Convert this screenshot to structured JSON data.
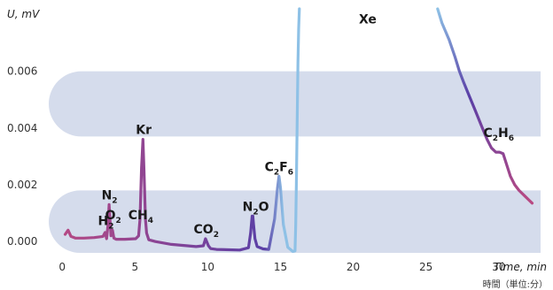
{
  "chart_data": {
    "type": "line",
    "ylabel": "U, mV",
    "xlabel": "Time, min",
    "xlabel_alt": "時間（単位:分）",
    "xlim": [
      -0.5,
      33
    ],
    "ylim": [
      -0.0004,
      0.0082
    ],
    "xticks": [
      "0",
      "5",
      "10",
      "15",
      "20",
      "25",
      "30"
    ],
    "yticks": [
      "0.000",
      "0.002",
      "0.004",
      "0.006"
    ],
    "bands": [
      [
        -0.0004,
        0.0018
      ],
      [
        0.0037,
        0.006
      ]
    ],
    "colors": {
      "band": "#d5dcec",
      "start": "#b94a83",
      "mid": "#5a3fa6",
      "end": "#8ec1e6"
    },
    "peaks": [
      {
        "label": "H",
        "sub": "2",
        "x": 3.0,
        "y": 0.0004
      },
      {
        "label": "N",
        "sub": "2",
        "x": 3.25,
        "y": 0.0013
      },
      {
        "label": "O",
        "sub": "2",
        "x": 3.5,
        "y": 0.0006
      },
      {
        "label": "CH",
        "sub": "4",
        "x": 5.4,
        "y": 0.0006
      },
      {
        "label": "Kr",
        "sub": "",
        "x": 5.6,
        "y": 0.0036
      },
      {
        "label": "CO",
        "sub": "2",
        "x": 9.9,
        "y": 0.0001
      },
      {
        "label": "N",
        "sub": "2",
        "tail": "O",
        "x": 13.3,
        "y": 0.0009
      },
      {
        "label": "C",
        "sub": "2",
        "tail": "F",
        "sub2": "6",
        "x": 14.9,
        "y": 0.0023
      },
      {
        "label": "Xe",
        "sub": "",
        "x": 21.0,
        "y": 0.0075
      },
      {
        "label": "C",
        "sub": "2",
        "tail": "H",
        "sub2": "6",
        "x": 30.0,
        "y": 0.0035
      }
    ],
    "series": [
      {
        "x": [
          0.2,
          0.4,
          0.6,
          0.9,
          1.5,
          2.2,
          2.8,
          2.95,
          3.05,
          3.15,
          3.22,
          3.28,
          3.35,
          3.45,
          3.55,
          3.7,
          4.3,
          5.05,
          5.25,
          5.35,
          5.45,
          5.55,
          5.62,
          5.72,
          5.8,
          5.95,
          6.4,
          7.5,
          9.2,
          9.7,
          9.85,
          10.05,
          10.2,
          10.6,
          12.2,
          12.8,
          12.95,
          13.05,
          13.1,
          13.15,
          13.25,
          13.4,
          13.8,
          14.2,
          14.6,
          14.8,
          14.9,
          15.0,
          15.2,
          15.5,
          15.85,
          16.0,
          16.05,
          16.1,
          16.15,
          16.2,
          16.25,
          16.3
        ],
        "y": [
          0.00025,
          0.0004,
          0.00018,
          0.00012,
          0.00012,
          0.00014,
          0.00018,
          0.00032,
          0.0001,
          0.0006,
          0.0013,
          0.0008,
          0.0002,
          0.0004,
          0.00012,
          8e-05,
          8e-05,
          0.0001,
          0.0002,
          0.0008,
          0.0026,
          0.0036,
          0.0025,
          0.0008,
          0.0003,
          6e-05,
          0.0,
          -0.0001,
          -0.00018,
          -0.00015,
          0.0001,
          -0.00015,
          -0.00025,
          -0.00028,
          -0.0003,
          -0.00022,
          0.0003,
          0.0009,
          0.0009,
          0.0006,
          0.0001,
          -0.00018,
          -0.00026,
          -0.00028,
          0.0008,
          0.0019,
          0.0023,
          0.0019,
          0.0006,
          -0.0002,
          -0.00035,
          -0.00033,
          0.0006,
          0.0022,
          0.0044,
          0.0063,
          0.0075,
          0.0082
        ]
      },
      {
        "x": [
          25.8,
          26.1,
          26.6,
          27.0,
          27.3,
          27.6,
          28.0,
          28.4,
          28.8,
          29.2,
          29.5,
          29.8,
          30.05,
          30.3,
          30.55,
          30.8,
          31.1,
          31.4,
          31.8,
          32.1,
          32.3
        ],
        "y": [
          0.0082,
          0.0077,
          0.0071,
          0.0065,
          0.006,
          0.0056,
          0.0051,
          0.0046,
          0.0041,
          0.0036,
          0.0033,
          0.00315,
          0.00315,
          0.0031,
          0.0027,
          0.0023,
          0.002,
          0.0018,
          0.0016,
          0.00145,
          0.00135
        ]
      }
    ]
  }
}
